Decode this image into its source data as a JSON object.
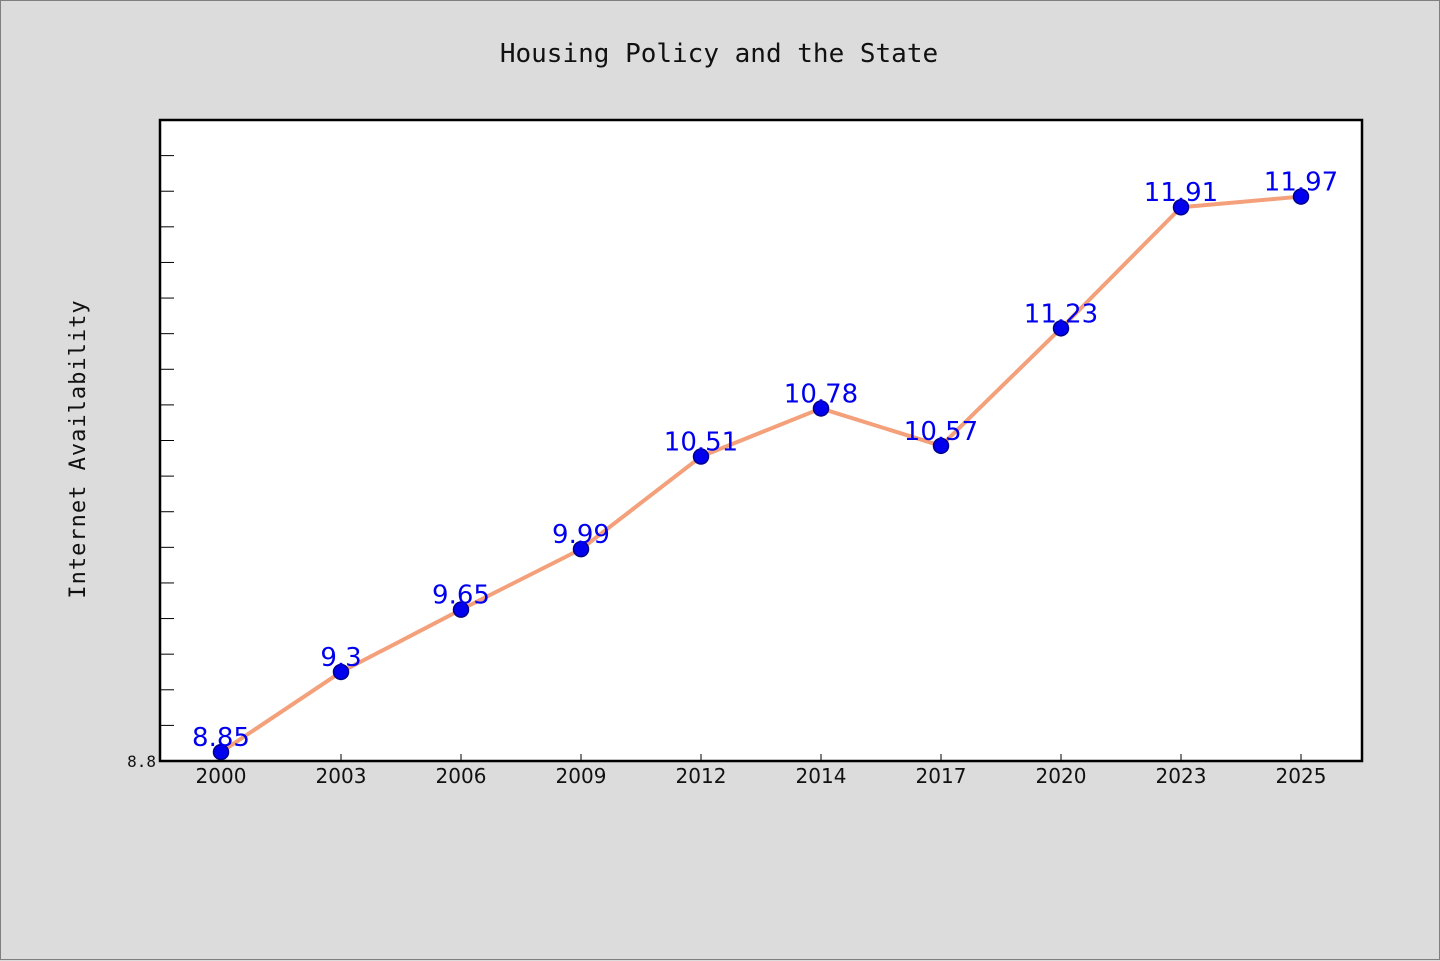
{
  "chart_data": {
    "type": "line",
    "title": "Housing Policy and the State",
    "xlabel": "",
    "ylabel": "Internet Availability",
    "categories": [
      "2000",
      "2003",
      "2006",
      "2009",
      "2012",
      "2014",
      "2017",
      "2020",
      "2023",
      "2025"
    ],
    "series": [
      {
        "values": [
          8.85,
          9.3,
          9.65,
          9.99,
          10.51,
          10.78,
          10.57,
          11.23,
          11.91,
          11.97
        ],
        "data_labels": [
          "8.85",
          "9.3",
          "9.65",
          "9.99",
          "10.51",
          "10.78",
          "10.57",
          "11.23",
          "11.91",
          "11.97"
        ]
      }
    ],
    "ylim": [
      8.8,
      12.4
    ],
    "y_tick_labels": [
      "8.8"
    ],
    "grid": false,
    "legend": "none",
    "colors": {
      "line": "#f4a07a",
      "marker_fill": "#0000ee",
      "marker_edge": "#00008b",
      "data_label": "#0000ee",
      "plot_bg": "#ffffff",
      "figure_bg": "#dcdcdc"
    }
  }
}
